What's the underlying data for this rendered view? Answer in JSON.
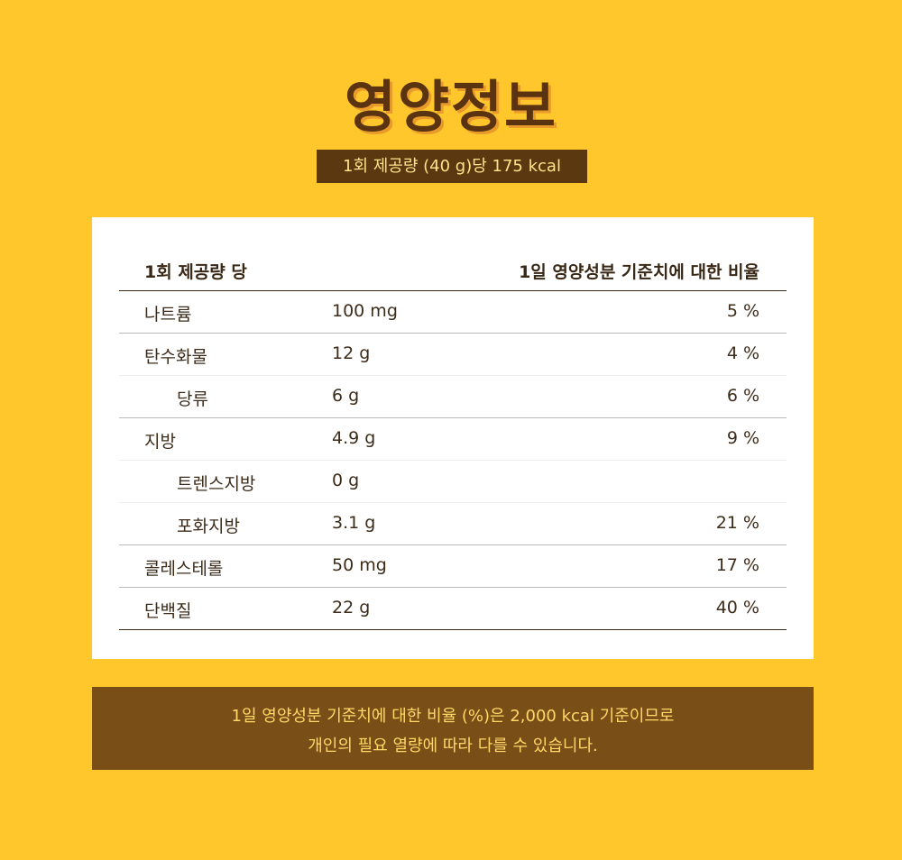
{
  "header": {
    "title": "영양정보",
    "serving": "1회 제공량 (40 g)당 175 kcal"
  },
  "table": {
    "col_left": "1회 제공량 당",
    "col_right": "1일 영양성분 기준치에 대한 비율",
    "rows": [
      {
        "name": "나트륨",
        "amount": "100 mg",
        "percent": "5 %"
      },
      {
        "name": "탄수화물",
        "amount": "12 g",
        "percent": "4 %"
      },
      {
        "name": "당류",
        "amount": "6 g",
        "percent": "6 %"
      },
      {
        "name": "지방",
        "amount": "4.9 g",
        "percent": "9 %"
      },
      {
        "name": "트렌스지방",
        "amount": "0 g",
        "percent": ""
      },
      {
        "name": "포화지방",
        "amount": "3.1 g",
        "percent": "21 %"
      },
      {
        "name": "콜레스테롤",
        "amount": "50 mg",
        "percent": "17 %"
      },
      {
        "name": "단백질",
        "amount": "22 g",
        "percent": "40 %"
      }
    ]
  },
  "note": {
    "line1": "1일 영양성분 기준치에 대한 비율 (%)은 2,000 kcal 기준이므로",
    "line2": "개인의 필요 열량에 따라 다를 수 있습니다."
  }
}
